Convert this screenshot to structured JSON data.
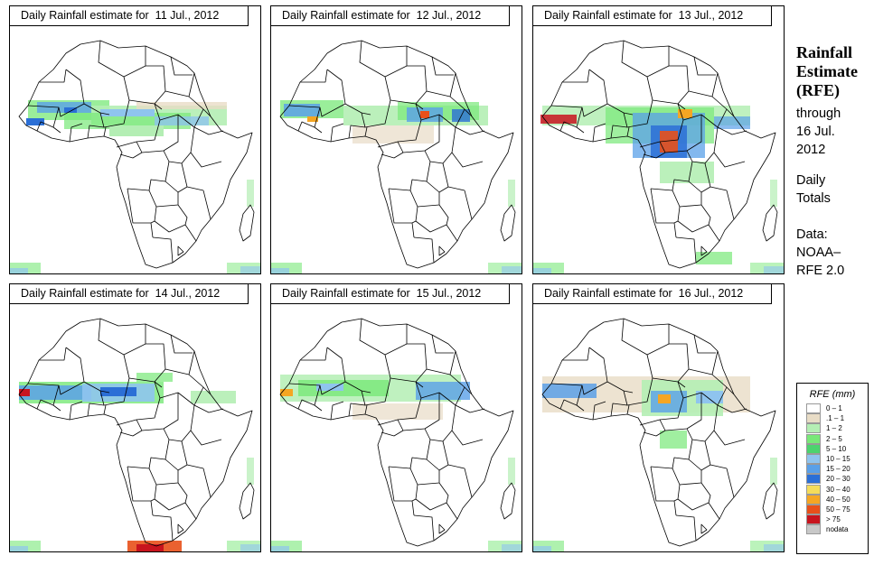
{
  "panels": [
    {
      "title": "Daily Rainfall estimate for  11 Jul., 2012"
    },
    {
      "title": "Daily Rainfall estimate for  12 Jul., 2012"
    },
    {
      "title": "Daily Rainfall estimate for  13 Jul., 2012"
    },
    {
      "title": "Daily Rainfall estimate for  14 Jul., 2012"
    },
    {
      "title": "Daily Rainfall estimate for  15 Jul., 2012"
    },
    {
      "title": "Daily Rainfall estimate for  16 Jul., 2012"
    }
  ],
  "sidebar": {
    "heading": [
      "Rainfall",
      "Estimate",
      "(RFE)"
    ],
    "through": [
      "through",
      "16 Jul.",
      "2012"
    ],
    "totals": [
      "Daily",
      "Totals"
    ],
    "source": [
      "Data:",
      "NOAA–",
      "RFE 2.0"
    ]
  },
  "legend": {
    "title": "RFE (mm)",
    "items": [
      {
        "label": "0 – 1",
        "color": "#ffffff"
      },
      {
        "label": ".1 – 1",
        "color": "#e8dcc6"
      },
      {
        "label": "1 – 2",
        "color": "#b4eeb4"
      },
      {
        "label": "2 – 5",
        "color": "#78e878"
      },
      {
        "label": "5 – 10",
        "color": "#4cd36e"
      },
      {
        "label": "10 – 15",
        "color": "#8fc4ee"
      },
      {
        "label": "15 – 20",
        "color": "#5aa0e8"
      },
      {
        "label": "20 – 30",
        "color": "#2b6fd6"
      },
      {
        "label": "30 – 40",
        "color": "#f5dc5a"
      },
      {
        "label": "40 – 50",
        "color": "#f5a623"
      },
      {
        "label": "50 – 75",
        "color": "#e8501a"
      },
      {
        "label": "> 75",
        "color": "#c8141e"
      },
      {
        "label": "nodata",
        "color": "#c8c8c8"
      }
    ]
  }
}
